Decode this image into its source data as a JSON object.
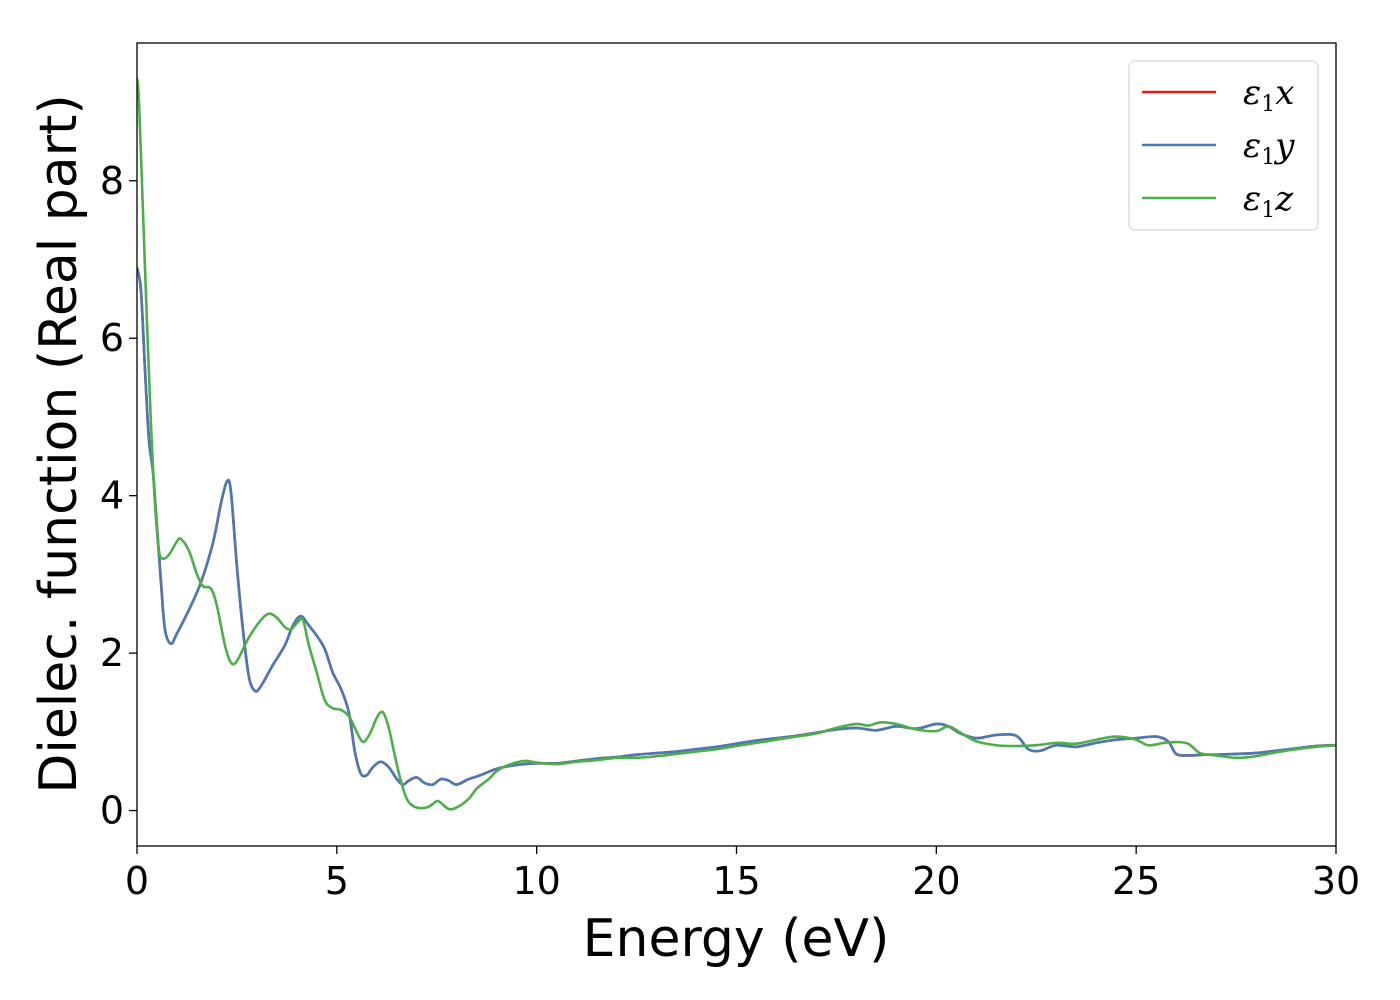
{
  "chart_data": {
    "type": "line",
    "xlabel": "Energy (eV)",
    "ylabel": "Dielec. function (Real part)",
    "xlim": [
      0,
      30
    ],
    "ylim": [
      -0.45,
      9.75
    ],
    "x_ticks": [
      0,
      5,
      10,
      15,
      20,
      25,
      30
    ],
    "y_ticks": [
      0,
      2,
      4,
      6,
      8
    ],
    "grid": false,
    "legend_position": "top-right",
    "series": [
      {
        "name": "ε1x",
        "legend_symbol": "ε",
        "legend_sub": "1",
        "legend_var": "x",
        "color": "#e41a1c",
        "points": [
          [
            0.0,
            6.9
          ],
          [
            0.1,
            6.6
          ],
          [
            0.2,
            5.6
          ],
          [
            0.3,
            4.7
          ],
          [
            0.4,
            4.3
          ],
          [
            0.5,
            3.6
          ],
          [
            0.6,
            2.9
          ],
          [
            0.7,
            2.3
          ],
          [
            0.85,
            2.12
          ],
          [
            1.0,
            2.25
          ],
          [
            1.3,
            2.55
          ],
          [
            1.6,
            2.9
          ],
          [
            1.9,
            3.4
          ],
          [
            2.1,
            3.9
          ],
          [
            2.25,
            4.18
          ],
          [
            2.35,
            4.05
          ],
          [
            2.5,
            3.1
          ],
          [
            2.65,
            2.3
          ],
          [
            2.8,
            1.7
          ],
          [
            2.95,
            1.52
          ],
          [
            3.1,
            1.58
          ],
          [
            3.4,
            1.85
          ],
          [
            3.7,
            2.1
          ],
          [
            3.9,
            2.35
          ],
          [
            4.1,
            2.47
          ],
          [
            4.3,
            2.35
          ],
          [
            4.5,
            2.22
          ],
          [
            4.7,
            2.05
          ],
          [
            4.9,
            1.75
          ],
          [
            5.1,
            1.55
          ],
          [
            5.3,
            1.25
          ],
          [
            5.45,
            0.75
          ],
          [
            5.6,
            0.47
          ],
          [
            5.75,
            0.45
          ],
          [
            5.9,
            0.55
          ],
          [
            6.1,
            0.62
          ],
          [
            6.3,
            0.55
          ],
          [
            6.5,
            0.4
          ],
          [
            6.65,
            0.33
          ],
          [
            6.8,
            0.38
          ],
          [
            7.0,
            0.42
          ],
          [
            7.2,
            0.35
          ],
          [
            7.4,
            0.33
          ],
          [
            7.6,
            0.4
          ],
          [
            7.8,
            0.38
          ],
          [
            8.0,
            0.33
          ],
          [
            8.3,
            0.4
          ],
          [
            8.6,
            0.45
          ],
          [
            9.0,
            0.53
          ],
          [
            9.5,
            0.58
          ],
          [
            10.0,
            0.6
          ],
          [
            10.5,
            0.6
          ],
          [
            11.0,
            0.63
          ],
          [
            11.5,
            0.66
          ],
          [
            12.0,
            0.68
          ],
          [
            12.5,
            0.71
          ],
          [
            13.0,
            0.73
          ],
          [
            13.5,
            0.75
          ],
          [
            14.0,
            0.78
          ],
          [
            14.5,
            0.81
          ],
          [
            15.0,
            0.85
          ],
          [
            15.5,
            0.89
          ],
          [
            16.0,
            0.92
          ],
          [
            16.5,
            0.95
          ],
          [
            17.0,
            0.99
          ],
          [
            17.5,
            1.03
          ],
          [
            18.0,
            1.05
          ],
          [
            18.5,
            1.02
          ],
          [
            19.0,
            1.07
          ],
          [
            19.5,
            1.04
          ],
          [
            20.0,
            1.1
          ],
          [
            20.3,
            1.07
          ],
          [
            20.6,
            0.98
          ],
          [
            21.0,
            0.92
          ],
          [
            21.5,
            0.96
          ],
          [
            22.0,
            0.95
          ],
          [
            22.3,
            0.78
          ],
          [
            22.6,
            0.76
          ],
          [
            23.0,
            0.83
          ],
          [
            23.5,
            0.81
          ],
          [
            24.0,
            0.86
          ],
          [
            24.5,
            0.9
          ],
          [
            25.0,
            0.92
          ],
          [
            25.5,
            0.94
          ],
          [
            25.8,
            0.88
          ],
          [
            26.0,
            0.72
          ],
          [
            26.3,
            0.7
          ],
          [
            26.7,
            0.71
          ],
          [
            27.0,
            0.71
          ],
          [
            27.5,
            0.72
          ],
          [
            28.0,
            0.73
          ],
          [
            28.5,
            0.76
          ],
          [
            29.0,
            0.79
          ],
          [
            29.5,
            0.82
          ],
          [
            30.0,
            0.83
          ]
        ]
      },
      {
        "name": "ε1y",
        "legend_symbol": "ε",
        "legend_sub": "1",
        "legend_var": "y",
        "color": "#4a7ab5",
        "points": [
          [
            0.0,
            6.9
          ],
          [
            0.1,
            6.6
          ],
          [
            0.2,
            5.6
          ],
          [
            0.3,
            4.7
          ],
          [
            0.4,
            4.3
          ],
          [
            0.5,
            3.6
          ],
          [
            0.6,
            2.9
          ],
          [
            0.7,
            2.3
          ],
          [
            0.85,
            2.12
          ],
          [
            1.0,
            2.25
          ],
          [
            1.3,
            2.55
          ],
          [
            1.6,
            2.9
          ],
          [
            1.9,
            3.4
          ],
          [
            2.1,
            3.9
          ],
          [
            2.25,
            4.18
          ],
          [
            2.35,
            4.05
          ],
          [
            2.5,
            3.1
          ],
          [
            2.65,
            2.3
          ],
          [
            2.8,
            1.7
          ],
          [
            2.95,
            1.52
          ],
          [
            3.1,
            1.58
          ],
          [
            3.4,
            1.85
          ],
          [
            3.7,
            2.1
          ],
          [
            3.9,
            2.35
          ],
          [
            4.1,
            2.47
          ],
          [
            4.3,
            2.35
          ],
          [
            4.5,
            2.22
          ],
          [
            4.7,
            2.05
          ],
          [
            4.9,
            1.75
          ],
          [
            5.1,
            1.55
          ],
          [
            5.3,
            1.25
          ],
          [
            5.45,
            0.75
          ],
          [
            5.6,
            0.47
          ],
          [
            5.75,
            0.45
          ],
          [
            5.9,
            0.55
          ],
          [
            6.1,
            0.62
          ],
          [
            6.3,
            0.55
          ],
          [
            6.5,
            0.4
          ],
          [
            6.65,
            0.33
          ],
          [
            6.8,
            0.38
          ],
          [
            7.0,
            0.42
          ],
          [
            7.2,
            0.35
          ],
          [
            7.4,
            0.33
          ],
          [
            7.6,
            0.4
          ],
          [
            7.8,
            0.38
          ],
          [
            8.0,
            0.33
          ],
          [
            8.3,
            0.4
          ],
          [
            8.6,
            0.45
          ],
          [
            9.0,
            0.53
          ],
          [
            9.5,
            0.58
          ],
          [
            10.0,
            0.6
          ],
          [
            10.5,
            0.6
          ],
          [
            11.0,
            0.63
          ],
          [
            11.5,
            0.66
          ],
          [
            12.0,
            0.68
          ],
          [
            12.5,
            0.71
          ],
          [
            13.0,
            0.73
          ],
          [
            13.5,
            0.75
          ],
          [
            14.0,
            0.78
          ],
          [
            14.5,
            0.81
          ],
          [
            15.0,
            0.85
          ],
          [
            15.5,
            0.89
          ],
          [
            16.0,
            0.92
          ],
          [
            16.5,
            0.95
          ],
          [
            17.0,
            0.99
          ],
          [
            17.5,
            1.03
          ],
          [
            18.0,
            1.05
          ],
          [
            18.5,
            1.02
          ],
          [
            19.0,
            1.07
          ],
          [
            19.5,
            1.04
          ],
          [
            20.0,
            1.1
          ],
          [
            20.3,
            1.07
          ],
          [
            20.6,
            0.98
          ],
          [
            21.0,
            0.92
          ],
          [
            21.5,
            0.96
          ],
          [
            22.0,
            0.95
          ],
          [
            22.3,
            0.78
          ],
          [
            22.6,
            0.76
          ],
          [
            23.0,
            0.83
          ],
          [
            23.5,
            0.81
          ],
          [
            24.0,
            0.86
          ],
          [
            24.5,
            0.9
          ],
          [
            25.0,
            0.92
          ],
          [
            25.5,
            0.94
          ],
          [
            25.8,
            0.88
          ],
          [
            26.0,
            0.72
          ],
          [
            26.3,
            0.7
          ],
          [
            26.7,
            0.71
          ],
          [
            27.0,
            0.71
          ],
          [
            27.5,
            0.72
          ],
          [
            28.0,
            0.73
          ],
          [
            28.5,
            0.76
          ],
          [
            29.0,
            0.79
          ],
          [
            29.5,
            0.82
          ],
          [
            30.0,
            0.83
          ]
        ]
      },
      {
        "name": "ε1z",
        "legend_symbol": "ε",
        "legend_sub": "1",
        "legend_var": "z",
        "color": "#4daf4a",
        "points": [
          [
            0.0,
            9.3
          ],
          [
            0.05,
            9.0
          ],
          [
            0.15,
            7.6
          ],
          [
            0.25,
            6.2
          ],
          [
            0.35,
            4.9
          ],
          [
            0.45,
            3.9
          ],
          [
            0.55,
            3.3
          ],
          [
            0.65,
            3.2
          ],
          [
            0.8,
            3.25
          ],
          [
            1.0,
            3.42
          ],
          [
            1.1,
            3.45
          ],
          [
            1.3,
            3.3
          ],
          [
            1.5,
            3.0
          ],
          [
            1.65,
            2.85
          ],
          [
            1.85,
            2.82
          ],
          [
            2.0,
            2.6
          ],
          [
            2.2,
            2.1
          ],
          [
            2.35,
            1.88
          ],
          [
            2.5,
            1.9
          ],
          [
            2.8,
            2.2
          ],
          [
            3.1,
            2.42
          ],
          [
            3.3,
            2.5
          ],
          [
            3.5,
            2.45
          ],
          [
            3.7,
            2.33
          ],
          [
            3.85,
            2.3
          ],
          [
            4.0,
            2.38
          ],
          [
            4.15,
            2.42
          ],
          [
            4.3,
            2.1
          ],
          [
            4.5,
            1.75
          ],
          [
            4.7,
            1.4
          ],
          [
            4.9,
            1.3
          ],
          [
            5.1,
            1.28
          ],
          [
            5.3,
            1.2
          ],
          [
            5.45,
            1.05
          ],
          [
            5.6,
            0.9
          ],
          [
            5.7,
            0.88
          ],
          [
            5.85,
            1.0
          ],
          [
            6.0,
            1.18
          ],
          [
            6.15,
            1.25
          ],
          [
            6.3,
            1.05
          ],
          [
            6.45,
            0.7
          ],
          [
            6.6,
            0.38
          ],
          [
            6.75,
            0.15
          ],
          [
            6.9,
            0.06
          ],
          [
            7.1,
            0.03
          ],
          [
            7.3,
            0.05
          ],
          [
            7.5,
            0.12
          ],
          [
            7.6,
            0.1
          ],
          [
            7.8,
            0.02
          ],
          [
            8.0,
            0.04
          ],
          [
            8.3,
            0.15
          ],
          [
            8.5,
            0.28
          ],
          [
            8.8,
            0.4
          ],
          [
            9.0,
            0.5
          ],
          [
            9.3,
            0.58
          ],
          [
            9.7,
            0.63
          ],
          [
            10.0,
            0.61
          ],
          [
            10.5,
            0.59
          ],
          [
            11.0,
            0.62
          ],
          [
            11.5,
            0.64
          ],
          [
            12.0,
            0.67
          ],
          [
            12.5,
            0.67
          ],
          [
            13.0,
            0.69
          ],
          [
            13.5,
            0.72
          ],
          [
            14.0,
            0.75
          ],
          [
            14.5,
            0.78
          ],
          [
            15.0,
            0.82
          ],
          [
            15.5,
            0.86
          ],
          [
            16.0,
            0.9
          ],
          [
            16.5,
            0.94
          ],
          [
            17.0,
            0.98
          ],
          [
            17.5,
            1.05
          ],
          [
            18.0,
            1.1
          ],
          [
            18.3,
            1.08
          ],
          [
            18.6,
            1.12
          ],
          [
            19.0,
            1.1
          ],
          [
            19.5,
            1.03
          ],
          [
            20.0,
            1.01
          ],
          [
            20.3,
            1.07
          ],
          [
            20.6,
            0.99
          ],
          [
            21.0,
            0.88
          ],
          [
            21.5,
            0.83
          ],
          [
            22.0,
            0.82
          ],
          [
            22.5,
            0.83
          ],
          [
            23.0,
            0.86
          ],
          [
            23.5,
            0.85
          ],
          [
            24.0,
            0.9
          ],
          [
            24.5,
            0.94
          ],
          [
            25.0,
            0.9
          ],
          [
            25.3,
            0.83
          ],
          [
            25.7,
            0.86
          ],
          [
            26.0,
            0.87
          ],
          [
            26.3,
            0.85
          ],
          [
            26.6,
            0.73
          ],
          [
            27.0,
            0.7
          ],
          [
            27.5,
            0.67
          ],
          [
            28.0,
            0.69
          ],
          [
            28.5,
            0.74
          ],
          [
            29.0,
            0.78
          ],
          [
            29.5,
            0.81
          ],
          [
            30.0,
            0.83
          ]
        ]
      }
    ]
  }
}
